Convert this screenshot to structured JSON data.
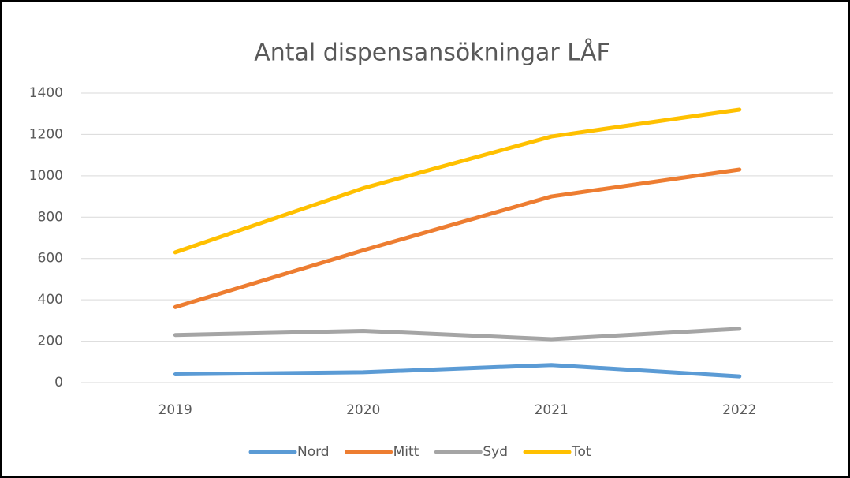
{
  "chart_data": {
    "type": "line",
    "title": "Antal dispensansökningar  LÅF",
    "categories": [
      "2019",
      "2020",
      "2021",
      "2022"
    ],
    "series": [
      {
        "name": "Nord",
        "color": "#5b9bd5",
        "values": [
          40,
          50,
          85,
          30
        ]
      },
      {
        "name": "Mitt",
        "color": "#ed7d31",
        "values": [
          365,
          640,
          900,
          1030
        ]
      },
      {
        "name": "Syd",
        "color": "#a5a5a5",
        "values": [
          230,
          250,
          210,
          260
        ]
      },
      {
        "name": "Tot",
        "color": "#ffc000",
        "values": [
          630,
          940,
          1190,
          1320
        ]
      }
    ],
    "ylim": [
      0,
      1400
    ],
    "yticks": [
      0,
      200,
      400,
      600,
      800,
      1000,
      1200,
      1400
    ],
    "grid": true,
    "legend": "bottom"
  }
}
